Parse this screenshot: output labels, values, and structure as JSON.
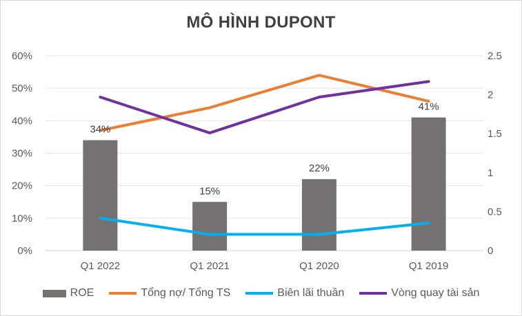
{
  "chart_data": {
    "type": "bar+line",
    "title": "MÔ HÌNH DUPONT",
    "categories": [
      "Q1 2022",
      "Q1 2021",
      "Q1 2020",
      "Q1 2019"
    ],
    "left_axis": {
      "min": 0,
      "max": 0.6,
      "ticks": [
        "0%",
        "10%",
        "20%",
        "30%",
        "40%",
        "50%",
        "60%"
      ]
    },
    "right_axis": {
      "min": 0,
      "max": 2.5,
      "ticks": [
        "0",
        "0.5",
        "1",
        "1.5",
        "2",
        "2.5"
      ]
    },
    "series": [
      {
        "name": "ROE",
        "type": "bar",
        "axis": "left",
        "color": "#767171",
        "values": [
          0.34,
          0.15,
          0.22,
          0.41
        ],
        "labels": [
          "34%",
          "15%",
          "22%",
          "41%"
        ]
      },
      {
        "name": "Tổng nợ/ Tổng TS",
        "type": "line",
        "axis": "left",
        "color": "#ED7D31",
        "values": [
          0.37,
          0.44,
          0.54,
          0.46
        ]
      },
      {
        "name": "Biên lãi thuần",
        "type": "line",
        "axis": "left",
        "color": "#00B0F0",
        "values": [
          0.1,
          0.05,
          0.05,
          0.085
        ]
      },
      {
        "name": "Vòng quay tài sản",
        "type": "line",
        "axis": "right",
        "color": "#7030A0",
        "values": [
          1.97,
          1.51,
          1.97,
          2.17
        ]
      }
    ]
  }
}
